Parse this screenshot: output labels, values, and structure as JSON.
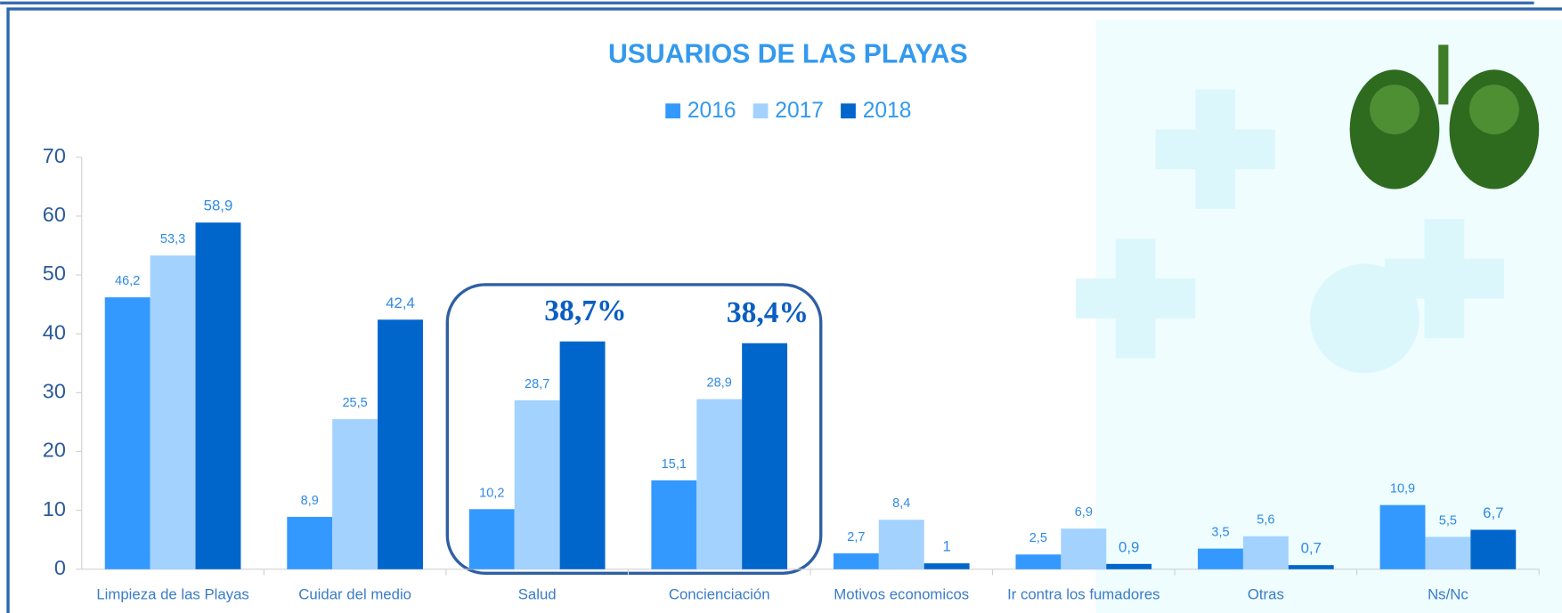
{
  "chart_data": {
    "type": "bar",
    "title": "USUARIOS DE LAS PLAYAS",
    "categories": [
      "Limpieza de las Playas",
      "Cuidar del medio",
      "Salud",
      "Concienciación",
      "Motivos economicos",
      "Ir contra los fumadores",
      "Otras",
      "Ns/Nc"
    ],
    "series": [
      {
        "name": "2016",
        "color": "#3399ff",
        "values": [
          46.2,
          8.9,
          10.2,
          15.1,
          2.7,
          2.5,
          3.5,
          10.9
        ],
        "value_labels": [
          "46,2",
          "8,9",
          "10,2",
          "15,1",
          "2,7",
          "2,5",
          "3,5",
          "10,9"
        ]
      },
      {
        "name": "2017",
        "color": "#a3d2ff",
        "values": [
          53.3,
          25.5,
          28.7,
          28.9,
          8.4,
          6.9,
          5.6,
          5.5
        ],
        "value_labels": [
          "53,3",
          "25,5",
          "28,7",
          "28,9",
          "8,4",
          "6,9",
          "5,6",
          "5,5"
        ]
      },
      {
        "name": "2018",
        "color": "#0066cc",
        "values": [
          58.9,
          42.4,
          38.7,
          38.4,
          1,
          0.9,
          0.7,
          6.7
        ],
        "value_labels": [
          "58,9",
          "42,4",
          "38,7%",
          "38,4%",
          "1",
          "0,9",
          "0,7",
          "6,7"
        ]
      }
    ],
    "ylim": [
      0,
      70
    ],
    "yticks": [
      0,
      10,
      20,
      30,
      40,
      50,
      60,
      70
    ],
    "legend": "top"
  }
}
